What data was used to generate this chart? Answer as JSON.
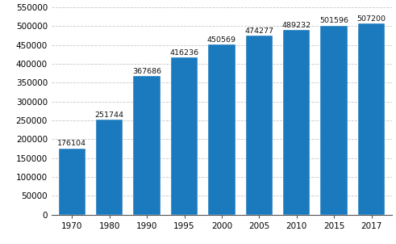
{
  "categories": [
    "1970",
    "1980",
    "1990",
    "1995",
    "2000",
    "2005",
    "2010",
    "2015",
    "2017"
  ],
  "values": [
    176104,
    251744,
    367686,
    416236,
    450569,
    474277,
    489232,
    501596,
    507200
  ],
  "bar_color": "#1a7abd",
  "ylim": [
    0,
    550000
  ],
  "yticks": [
    0,
    50000,
    100000,
    150000,
    200000,
    250000,
    300000,
    350000,
    400000,
    450000,
    500000,
    550000
  ],
  "grid_color": "#c8c8c8",
  "bar_edge_color": "white",
  "label_fontsize": 6.8,
  "tick_fontsize": 7.5,
  "label_color": "#111111",
  "bg_color": "#ffffff",
  "bar_width": 0.72
}
